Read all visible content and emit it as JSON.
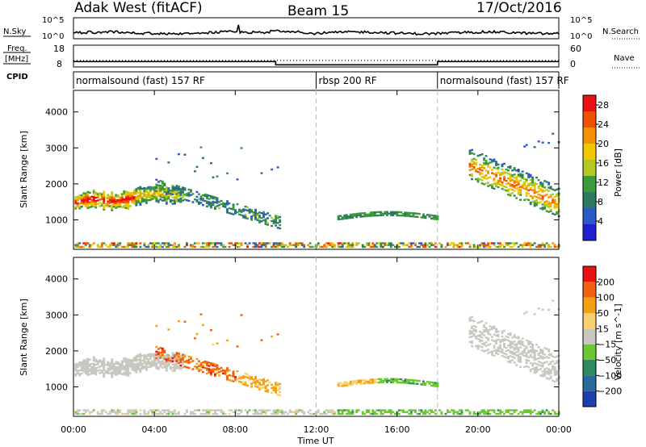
{
  "header": {
    "title": "Adak West (fitACF)",
    "beam": "Beam 15",
    "date": "17/Oct/2016"
  },
  "strips": {
    "nsky_label": "N.Sky",
    "nsky_ticks": [
      "10^5",
      "10^0"
    ],
    "nsearch_label": "N.Search",
    "nsearch_ticks": [
      "10^5",
      "10^0"
    ],
    "freq_label_1": "Freq.",
    "freq_label_2": "[MHz]",
    "freq_ticks": [
      "18",
      "8"
    ],
    "nave_label": "Nave",
    "nave_ticks": [
      "60",
      "0"
    ],
    "cpid_label": "CPID",
    "cpid_segments": [
      {
        "label": "normalsound (fast) 157 RF",
        "start_hour": 0,
        "end_hour": 12
      },
      {
        "label": "rbsp 200 RF",
        "start_hour": 12,
        "end_hour": 18
      },
      {
        "label": "normalsound (fast) 157 RF",
        "start_hour": 18,
        "end_hour": 24
      }
    ],
    "freq_level_mhz": [
      {
        "start_hour": 0,
        "end_hour": 10,
        "value": 10.5
      },
      {
        "start_hour": 10,
        "end_hour": 18,
        "value": 9
      },
      {
        "start_hour": 18,
        "end_hour": 24,
        "value": 10.5
      }
    ]
  },
  "chart_data": [
    {
      "type": "heatmap",
      "title": "Power",
      "xlabel": "",
      "ylabel": "Slant Range [km]",
      "x_unit": "hours UT",
      "xlim": [
        0,
        24
      ],
      "ylim": [
        180,
        4600
      ],
      "x_ticks": [
        "00:00",
        "04:00",
        "08:00",
        "12:00",
        "16:00",
        "20:00",
        "00:00"
      ],
      "y_ticks": [
        1000,
        2000,
        3000,
        4000
      ],
      "colorbar": {
        "label": "Power [dB]",
        "ticks": [
          4,
          8,
          12,
          16,
          20,
          24,
          28
        ],
        "range": [
          0,
          30
        ],
        "colors": [
          "#1f1fd0",
          "#2a5ac8",
          "#2e7a60",
          "#3c9a3a",
          "#b4c820",
          "#f0c800",
          "#f59000",
          "#f05000",
          "#e81010"
        ]
      },
      "features": [
        {
          "name": "morning band",
          "x_hours": [
            0,
            5
          ],
          "slant_range_km": [
            1300,
            1800
          ],
          "power_db": [
            16,
            28
          ]
        },
        {
          "name": "post-noon arc",
          "x_hours": [
            13,
            18
          ],
          "slant_range_km": [
            950,
            1200
          ],
          "power_db": [
            8,
            12
          ]
        },
        {
          "name": "evening band",
          "x_hours": [
            19.5,
            24
          ],
          "slant_range_km": [
            1400,
            3300
          ],
          "power_db": [
            6,
            24
          ]
        },
        {
          "name": "ground scatter",
          "x_hours": [
            0,
            24
          ],
          "slant_range_km": [
            200,
            400
          ],
          "power_db": [
            4,
            28
          ]
        }
      ]
    },
    {
      "type": "heatmap",
      "title": "Velocity",
      "xlabel": "Time UT",
      "ylabel": "Slant Range [km]",
      "x_unit": "hours UT",
      "xlim": [
        0,
        24
      ],
      "ylim": [
        180,
        4600
      ],
      "x_ticks": [
        "00:00",
        "04:00",
        "08:00",
        "12:00",
        "16:00",
        "20:00",
        "00:00"
      ],
      "y_ticks": [
        1000,
        2000,
        3000,
        4000
      ],
      "colorbar": {
        "label": "Velocity [m s^-1]",
        "ticks": [
          "200",
          "100",
          "50",
          "15",
          "−15",
          "−50",
          "−100",
          "−200"
        ],
        "colors": [
          "#1f3fb0",
          "#2a6a9a",
          "#2e8a60",
          "#6cc830",
          "#c8c8c0",
          "#f8d070",
          "#f5a010",
          "#f06010",
          "#e81010"
        ]
      },
      "features": [
        {
          "name": "morning band",
          "x_hours": [
            0,
            5
          ],
          "slant_range_km": [
            1300,
            1800
          ],
          "velocity_ms": [
            -15,
            15
          ]
        },
        {
          "name": "red feature",
          "x_hours": [
            5,
            10
          ],
          "slant_range_km": [
            700,
            2000
          ],
          "velocity_ms": [
            -200,
            -50
          ]
        },
        {
          "name": "post-noon arc",
          "x_hours": [
            13,
            18
          ],
          "slant_range_km": [
            950,
            1200
          ],
          "velocity_ms": [
            -50,
            50
          ]
        },
        {
          "name": "evening band",
          "x_hours": [
            19.5,
            24
          ],
          "slant_range_km": [
            1400,
            3300
          ],
          "velocity_ms": [
            -15,
            15
          ]
        }
      ]
    }
  ]
}
